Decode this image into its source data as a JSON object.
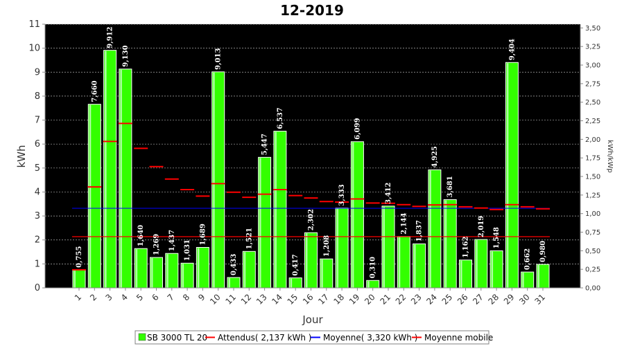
{
  "chart_data": {
    "type": "bar",
    "title": "12-2019",
    "xlabel": "Jour",
    "ylabel": "kWh",
    "y2label": "kWh/kWp",
    "ylim": [
      0,
      11
    ],
    "y2lim": [
      0,
      3.55
    ],
    "yticks": [
      "0",
      "1",
      "2",
      "3",
      "4",
      "5",
      "6",
      "7",
      "8",
      "9",
      "10",
      "11"
    ],
    "y2ticks": [
      "0,00",
      "0,25",
      "0,50",
      "0,75",
      "1,00",
      "1,25",
      "1,50",
      "1,75",
      "2,00",
      "2,25",
      "2,50",
      "2,75",
      "3,00",
      "3,25",
      "3,50"
    ],
    "categories": [
      "1",
      "2",
      "3",
      "4",
      "5",
      "6",
      "7",
      "8",
      "9",
      "10",
      "11",
      "12",
      "13",
      "14",
      "15",
      "16",
      "17",
      "18",
      "19",
      "20",
      "21",
      "22",
      "23",
      "24",
      "25",
      "26",
      "27",
      "28",
      "29",
      "30",
      "31"
    ],
    "series": [
      {
        "name": "SB 3000 TL 20",
        "kind": "bar",
        "color": "#33ff00",
        "values": [
          0.755,
          7.66,
          9.912,
          9.13,
          1.64,
          1.269,
          1.437,
          1.031,
          1.689,
          9.013,
          0.433,
          1.521,
          5.447,
          6.537,
          0.417,
          2.302,
          1.208,
          3.333,
          6.099,
          0.31,
          3.412,
          2.144,
          1.837,
          4.925,
          3.681,
          1.162,
          2.019,
          1.548,
          9.404,
          0.662,
          0.98
        ],
        "labels": [
          "0,755",
          "7,660",
          "9,912",
          "9,130",
          "1,640",
          "1,269",
          "1,437",
          "1,031",
          "1,689",
          "9,013",
          "0,433",
          "1,521",
          "5,447",
          "6,537",
          "0,417",
          "2,302",
          "1,208",
          "3,333",
          "6,099",
          "0,310",
          "3,412",
          "2,144",
          "1,837",
          "4,925",
          "3,681",
          "1,162",
          "2,019",
          "1,548",
          "9,404",
          "0,662",
          "0,980"
        ]
      },
      {
        "name": "Attendus( 2,137 kWh )",
        "kind": "constant",
        "color": "#ff0000",
        "value": 2.137
      },
      {
        "name": "Moyenne( 3,320 kWh )",
        "kind": "constant",
        "color": "#0000ff",
        "value": 3.32
      },
      {
        "name": "Moyenne mobile",
        "kind": "marker",
        "color": "#ff0000",
        "values": [
          0.755,
          4.21,
          6.11,
          6.86,
          5.82,
          5.06,
          4.54,
          4.1,
          3.83,
          4.35,
          3.99,
          3.78,
          3.91,
          4.1,
          3.85,
          3.75,
          3.6,
          3.58,
          3.71,
          3.54,
          3.53,
          3.47,
          3.4,
          3.46,
          3.47,
          3.38,
          3.33,
          3.27,
          3.47,
          3.38,
          3.3
        ]
      }
    ],
    "legend": "bottom",
    "grid": true
  }
}
